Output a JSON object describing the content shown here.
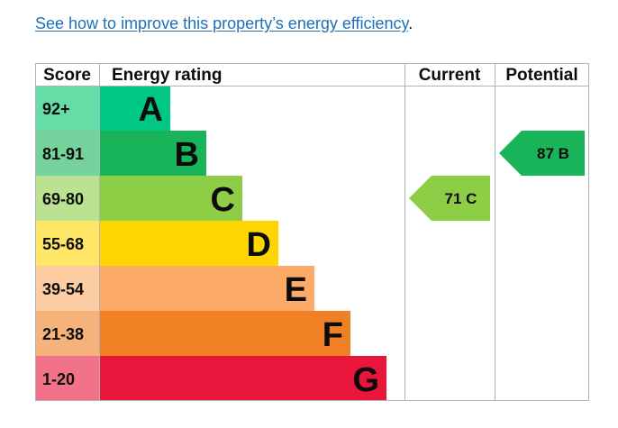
{
  "intro": {
    "link_text": "See how to improve this property’s energy efficiency",
    "suffix": "."
  },
  "chart_data": {
    "type": "bar",
    "headers": {
      "score": "Score",
      "rating": "Energy rating",
      "current": "Current",
      "potential": "Potential"
    },
    "bands": [
      {
        "letter": "A",
        "range": "92+",
        "color": "#00c781",
        "score_color": "#66dda7"
      },
      {
        "letter": "B",
        "range": "81-91",
        "color": "#19b459",
        "score_color": "#75d29b"
      },
      {
        "letter": "C",
        "range": "69-80",
        "color": "#8dce46",
        "score_color": "#bbe290"
      },
      {
        "letter": "D",
        "range": "55-68",
        "color": "#ffd500",
        "score_color": "#ffe666"
      },
      {
        "letter": "E",
        "range": "39-54",
        "color": "#fcaa65",
        "score_color": "#fdcca3"
      },
      {
        "letter": "F",
        "range": "21-38",
        "color": "#ef8023",
        "score_color": "#f5b37b"
      },
      {
        "letter": "G",
        "range": "1-20",
        "color": "#e9153b",
        "score_color": "#f27389"
      }
    ],
    "current": {
      "value": 71,
      "letter": "C",
      "label": "71 C",
      "color": "#8dce46"
    },
    "potential": {
      "value": 87,
      "letter": "B",
      "label": "87 B",
      "color": "#19b459"
    }
  }
}
